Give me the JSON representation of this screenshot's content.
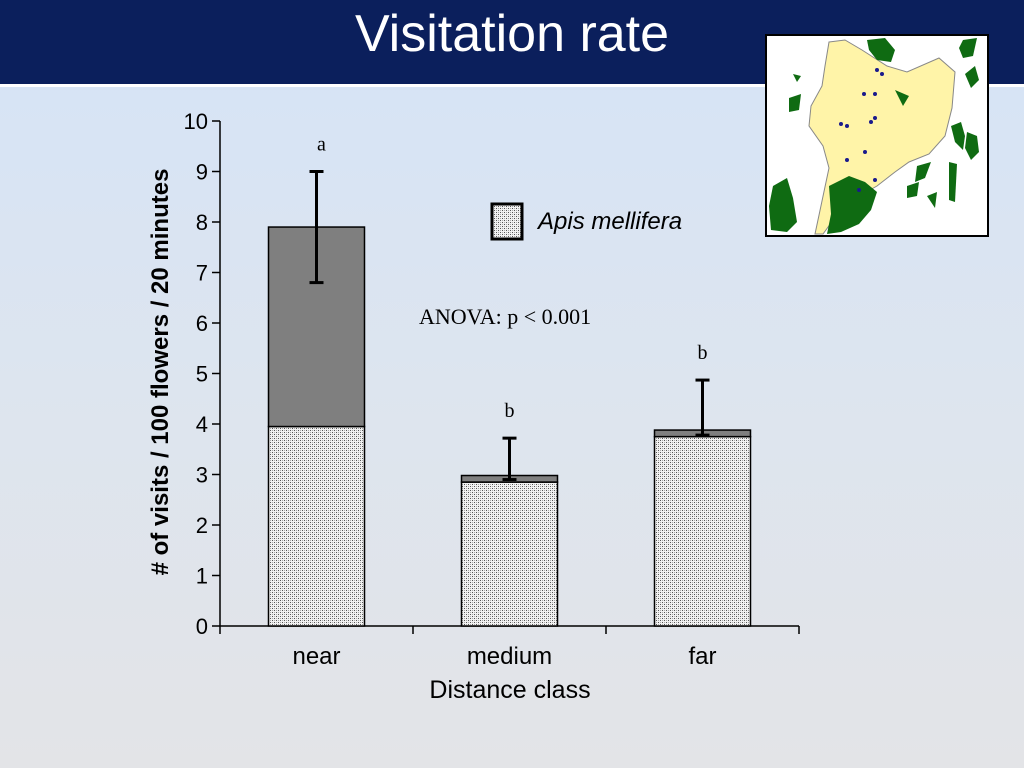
{
  "slide": {
    "title": "Visitation rate"
  },
  "map": {
    "icon": "site-map-icon"
  },
  "colors": {
    "title_bg": "#0b1f5c",
    "bar_dark": "#7f7f7f",
    "map_yellow": "#fff4a8",
    "map_green": "#0f6b12",
    "map_dot": "#1a1a8c"
  },
  "chart_data": {
    "type": "bar",
    "title": "",
    "xlabel": "Distance class",
    "ylabel": "# of visits / 100 flowers / 20 minutes",
    "ylim": [
      0,
      10
    ],
    "yticks": [
      "0",
      "1",
      "2",
      "3",
      "4",
      "5",
      "6",
      "7",
      "8",
      "9",
      "10"
    ],
    "categories": [
      "near",
      "medium",
      "far"
    ],
    "stacked": true,
    "series": [
      {
        "name": "Apis mellifera",
        "pattern": "stipple",
        "values": [
          3.95,
          2.85,
          3.75
        ]
      },
      {
        "pattern": "solid-dark",
        "values": [
          3.95,
          0.13,
          0.13
        ]
      }
    ],
    "totals": [
      7.9,
      2.98,
      3.88
    ],
    "errors": [
      {
        "low": 6.8,
        "high": 9.0
      },
      {
        "low": 2.9,
        "high": 3.72
      },
      {
        "low": 3.78,
        "high": 4.87
      }
    ],
    "significance_letters": [
      "a",
      "b",
      "b"
    ],
    "legend": {
      "label": "Apis mellifera",
      "placement": "top-right"
    },
    "annotation": "ANOVA: p < 0.001",
    "grid": false
  }
}
